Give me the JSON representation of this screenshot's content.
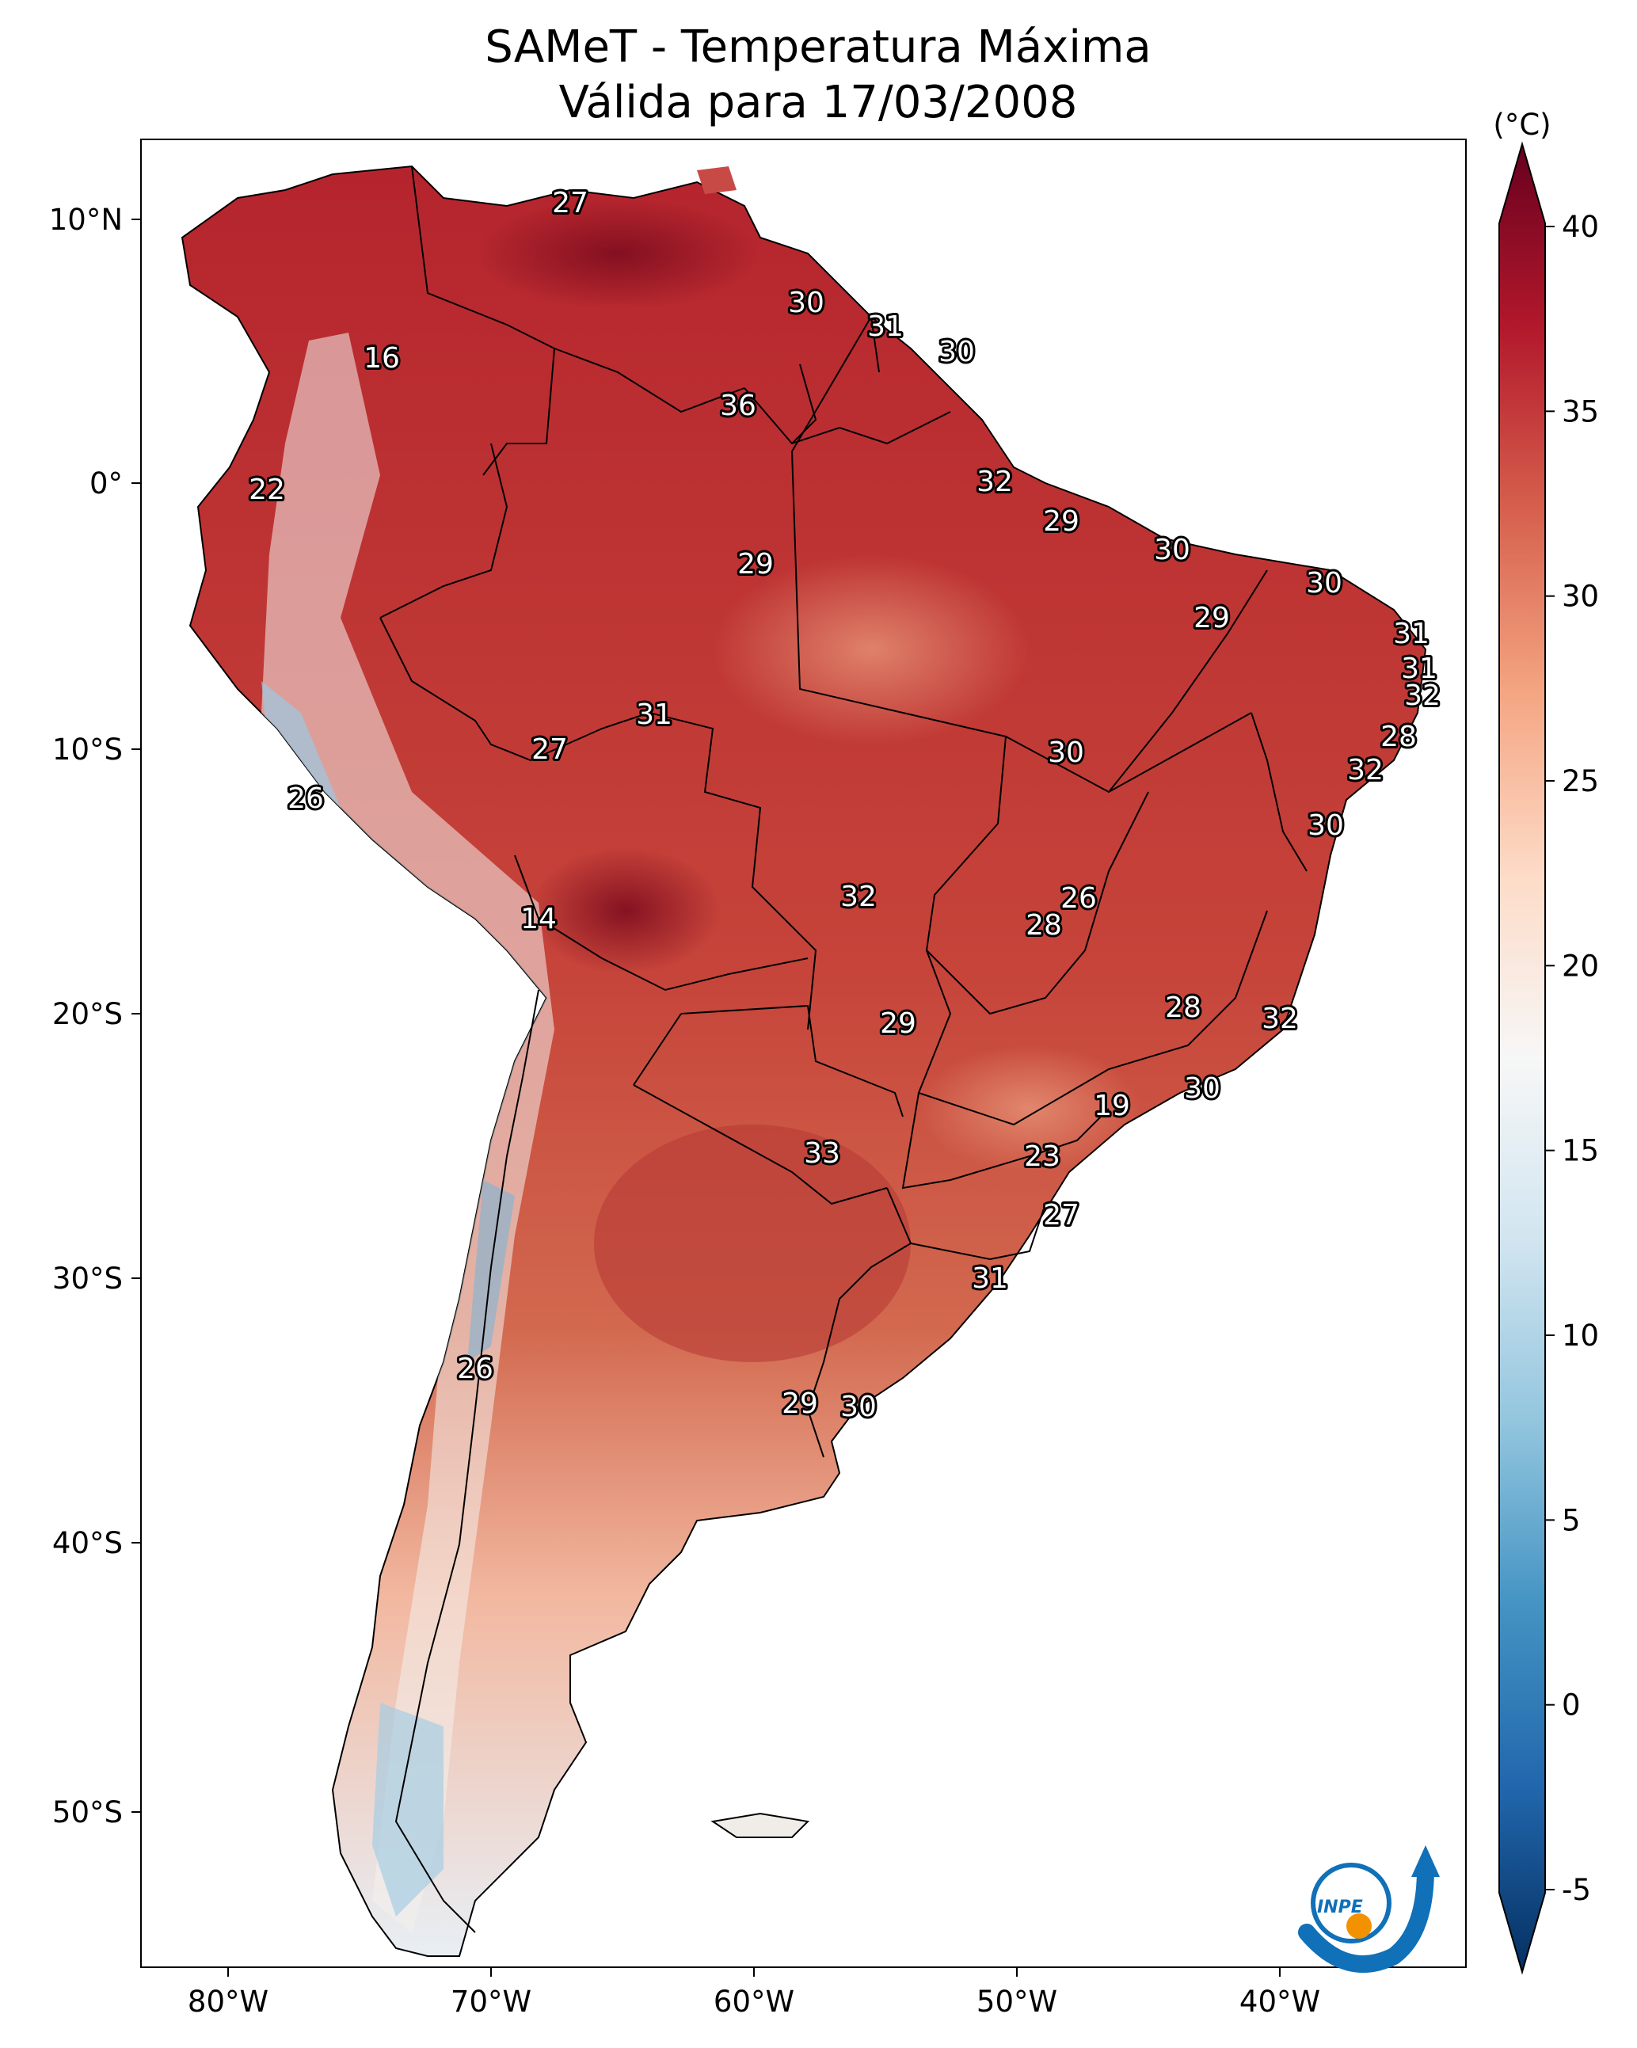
{
  "title": {
    "line1": "SAMeT - Temperatura Máxima",
    "line2": "Válida para 17/03/2008"
  },
  "colorbar": {
    "unit": "(°C)",
    "ticks": [
      "40",
      "35",
      "30",
      "25",
      "20",
      "15",
      "10",
      "5",
      "0",
      "-5"
    ],
    "min": -5,
    "max": 40,
    "colors": [
      "#053061",
      "#2166ac",
      "#4393c3",
      "#92c5de",
      "#d1e5f0",
      "#f7f7f7",
      "#fddbc7",
      "#f4a582",
      "#d6604d",
      "#b2182b",
      "#67001f"
    ]
  },
  "axes": {
    "lon_labels": [
      "80°W",
      "70°W",
      "60°W",
      "50°W",
      "40°W"
    ],
    "lat_labels": [
      "10°N",
      "0°",
      "10°S",
      "20°S",
      "30°S",
      "40°S",
      "50°S"
    ]
  },
  "map_values": [
    "27",
    "16",
    "22",
    "26",
    "14",
    "26",
    "30",
    "31",
    "30",
    "36",
    "32",
    "29",
    "29",
    "30",
    "30",
    "29",
    "31",
    "31",
    "32",
    "31",
    "27",
    "28",
    "32",
    "30",
    "30",
    "32",
    "26",
    "28",
    "29",
    "28",
    "32",
    "30",
    "19",
    "23",
    "33",
    "27",
    "31",
    "29",
    "30"
  ],
  "logo": {
    "text": "INPE",
    "blue": "#1070b8",
    "orange": "#f39200"
  }
}
